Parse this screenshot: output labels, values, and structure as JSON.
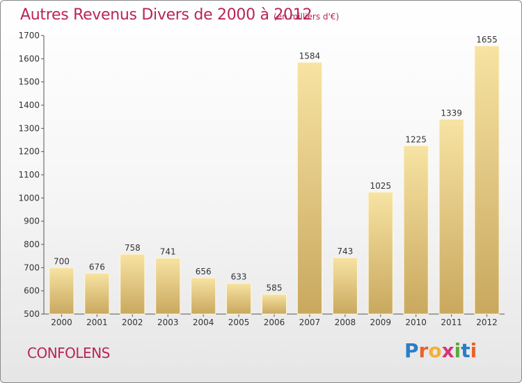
{
  "header": {
    "title": "Autres Revenus Divers de 2000 à 2012",
    "subtitle": "(en milliers d'€)"
  },
  "footer": {
    "commune": "CONFOLENS",
    "logo_letters": [
      "P",
      "r",
      "o",
      "x",
      "i",
      "t",
      "i"
    ],
    "logo_colors": [
      "#2a7dc8",
      "#e8632b",
      "#f2b134",
      "#d4357a",
      "#5aab3c",
      "#2a7dc8",
      "#e8632b"
    ]
  },
  "chart_data": {
    "type": "bar",
    "title": "Autres Revenus Divers de 2000 à 2012",
    "categories": [
      "2000",
      "2001",
      "2002",
      "2003",
      "2004",
      "2005",
      "2006",
      "2007",
      "2008",
      "2009",
      "2010",
      "2011",
      "2012"
    ],
    "values": [
      700,
      676,
      758,
      741,
      656,
      633,
      585,
      1584,
      743,
      1025,
      1225,
      1339,
      1655
    ],
    "data_labels": [
      "700",
      "676",
      "758",
      "741",
      "656",
      "633",
      "585",
      "1584",
      "743",
      "1025",
      "1225",
      "1339",
      "1655"
    ],
    "ylim": [
      500,
      1700
    ],
    "yticks": [
      "500",
      "600",
      "700",
      "800",
      "900",
      "1000",
      "1100",
      "1200",
      "1300",
      "1400",
      "1500",
      "1600",
      "1700"
    ],
    "xlabel": "",
    "ylabel": "",
    "grid": false,
    "bar_color_light": "#f7e3a3",
    "bar_color_dark": "#c9a85e"
  }
}
